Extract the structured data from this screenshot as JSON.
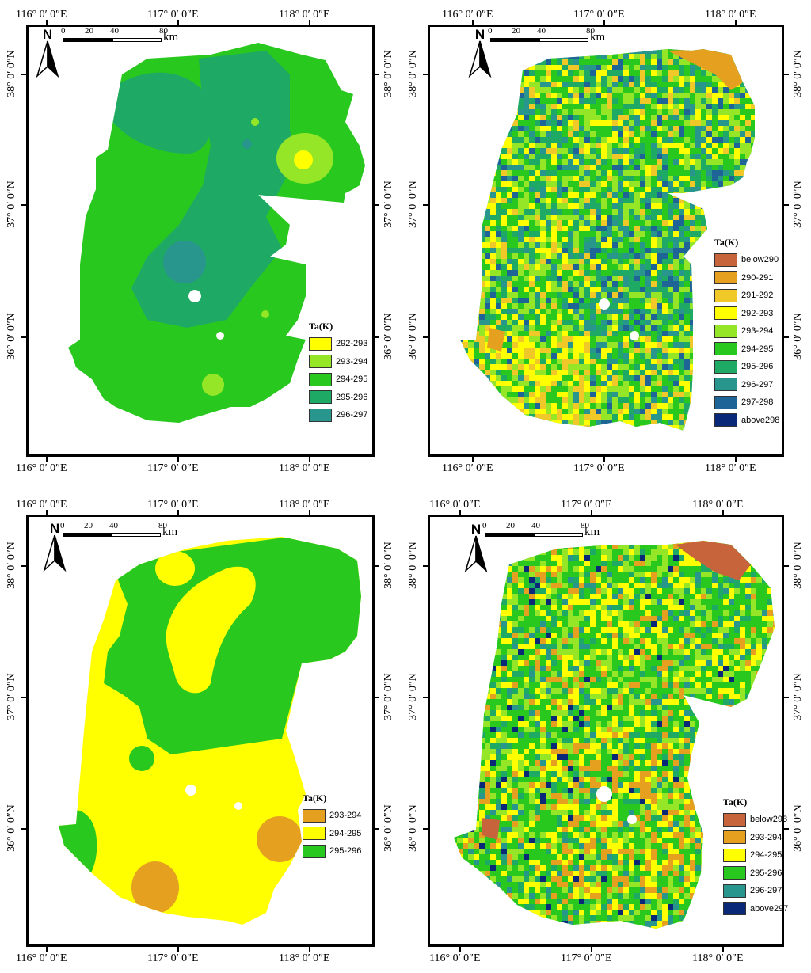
{
  "axes": {
    "lon_labels": [
      "116° 0′ 0″E",
      "117° 0′ 0″E",
      "118° 0′ 0″E"
    ],
    "lat_labels": [
      "38° 0′ 0″N",
      "37° 0′ 0″N",
      "36° 0′ 0″N"
    ]
  },
  "north_arrow": {
    "letter": "N"
  },
  "scale_bar": {
    "ticks": [
      "0",
      "20",
      "40",
      "80"
    ],
    "unit": "km"
  },
  "colors": {
    "brown": "#c8643c",
    "orange": "#e6a020",
    "gold": "#f0c828",
    "yellow": "#ffff00",
    "lightgreen": "#96e628",
    "green": "#28c81e",
    "seagreen": "#1eaa64",
    "teal": "#28968c",
    "steelblue": "#1e6496",
    "navy": "#0a2878"
  },
  "maps": [
    {
      "style": "interpolated",
      "legend": {
        "title": "Ta(K)",
        "items": [
          {
            "label": "292-293",
            "color": "#ffff00"
          },
          {
            "label": "293-294",
            "color": "#96e628"
          },
          {
            "label": "294-295",
            "color": "#28c81e"
          },
          {
            "label": "295-296",
            "color": "#1eaa64"
          },
          {
            "label": "296-297",
            "color": "#28968c"
          }
        ]
      }
    },
    {
      "style": "raster",
      "legend": {
        "title": "Ta(K)",
        "items": [
          {
            "label": "below290",
            "color": "#c8643c"
          },
          {
            "label": "290-291",
            "color": "#e6a020"
          },
          {
            "label": "291-292",
            "color": "#f0c828"
          },
          {
            "label": "292-293",
            "color": "#ffff00"
          },
          {
            "label": "293-294",
            "color": "#96e628"
          },
          {
            "label": "294-295",
            "color": "#28c81e"
          },
          {
            "label": "295-296",
            "color": "#1eaa64"
          },
          {
            "label": "296-297",
            "color": "#28968c"
          },
          {
            "label": "297-298",
            "color": "#1e6496"
          },
          {
            "label": "above298",
            "color": "#0a2878"
          }
        ]
      }
    },
    {
      "style": "interpolated",
      "legend": {
        "title": "Ta(K)",
        "items": [
          {
            "label": "293-294",
            "color": "#e6a020"
          },
          {
            "label": "294-295",
            "color": "#ffff00"
          },
          {
            "label": "295-296",
            "color": "#28c81e"
          }
        ]
      }
    },
    {
      "style": "raster",
      "legend": {
        "title": "Ta(K)",
        "items": [
          {
            "label": "below293",
            "color": "#c8643c"
          },
          {
            "label": "293-294",
            "color": "#e6a020"
          },
          {
            "label": "294-295",
            "color": "#ffff00"
          },
          {
            "label": "295-296",
            "color": "#28c81e"
          },
          {
            "label": "296-297",
            "color": "#28968c"
          },
          {
            "label": "above297",
            "color": "#0a2878"
          }
        ]
      }
    }
  ]
}
